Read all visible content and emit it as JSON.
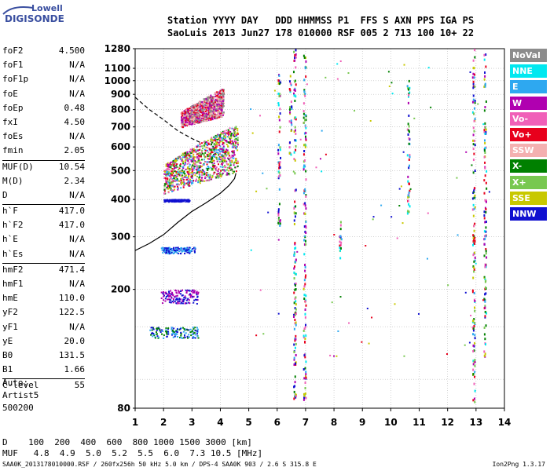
{
  "logo": {
    "line1": "Lowell",
    "line2": "DIGISONDE"
  },
  "header": {
    "line1": "Station YYYY DAY   DDD HHMMSS P1  FFS S AXN PPS IGA PS",
    "line2": "SaoLuis 2013 Jun27 178 010000 RSF 005 2 713 100 10+ 22"
  },
  "params": [
    {
      "label": "foF2",
      "value": "4.500"
    },
    {
      "label": "foF1",
      "value": "N/A"
    },
    {
      "label": "foF1p",
      "value": "N/A"
    },
    {
      "label": "foE",
      "value": "N/A"
    },
    {
      "label": "foEp",
      "value": "0.48"
    },
    {
      "label": "fxI",
      "value": "4.50"
    },
    {
      "label": "foEs",
      "value": "N/A"
    },
    {
      "label": "fmin",
      "value": "2.05"
    },
    {
      "label": "MUF(D)",
      "value": "10.54",
      "sep": true
    },
    {
      "label": "M(D)",
      "value": "2.34"
    },
    {
      "label": "D",
      "value": "N/A"
    },
    {
      "label": "h`F",
      "value": "417.0",
      "sep": true
    },
    {
      "label": "h`F2",
      "value": "417.0"
    },
    {
      "label": "h`E",
      "value": "N/A"
    },
    {
      "label": "h`Es",
      "value": "N/A"
    },
    {
      "label": "hmF2",
      "value": "471.4",
      "sep": true
    },
    {
      "label": "hmF1",
      "value": "N/A"
    },
    {
      "label": "hmE",
      "value": "110.0"
    },
    {
      "label": "yF2",
      "value": "122.5"
    },
    {
      "label": "yF1",
      "value": "N/A"
    },
    {
      "label": "yE",
      "value": "20.0"
    },
    {
      "label": "B0",
      "value": "131.5"
    },
    {
      "label": "B1",
      "value": "1.66"
    },
    {
      "label": "C-level",
      "value": "55",
      "sep": true
    }
  ],
  "auto": {
    "line1": "Auto:",
    "line2": "Artist5",
    "line3": "500200"
  },
  "dtable": {
    "line1": "D    100  200  400  600  800 1000 1500 3000 [km]",
    "line2": "MUF   4.8  4.9  5.0  5.2  5.5  6.0  7.3 10.5 [MHz]"
  },
  "footer": {
    "left": "SAA0K_2013178010000.RSF / 260fx256h 50 kHz 5.0 km / DPS-4 SAA0K 903 / 2.6 S 315.8 E",
    "right": "Ion2Png 1.3.17"
  },
  "legend": [
    {
      "label": "NoVal",
      "color": "#8c8c8c"
    },
    {
      "label": "NNE",
      "color": "#00e8f0"
    },
    {
      "label": "E",
      "color": "#2ea8f0"
    },
    {
      "label": "W",
      "color": "#b000b0"
    },
    {
      "label": "Vo-",
      "color": "#f060b8"
    },
    {
      "label": "Vo+",
      "color": "#e8001c"
    },
    {
      "label": "SSW",
      "color": "#f4b0b0"
    },
    {
      "label": "X-",
      "color": "#008000"
    },
    {
      "label": "X+",
      "color": "#78c850"
    },
    {
      "label": "SSE",
      "color": "#c8c800"
    },
    {
      "label": "NNW",
      "color": "#1010d0"
    }
  ],
  "chart_data": {
    "type": "scatter",
    "title": "",
    "xlabel": "",
    "ylabel": "",
    "xlim": [
      1,
      14
    ],
    "ylim": [
      80,
      1280
    ],
    "yscale": "log",
    "x_ticks": [
      1,
      2,
      3,
      4,
      5,
      6,
      7,
      8,
      9,
      10,
      11,
      12,
      13,
      14
    ],
    "y_ticks": [
      80,
      200,
      300,
      400,
      500,
      600,
      700,
      800,
      900,
      1000,
      1100,
      1280
    ],
    "y_ticks_minor": [
      100,
      150
    ],
    "grid": true,
    "legend_position": "right",
    "profile_curve": [
      [
        1.0,
        270
      ],
      [
        1.5,
        285
      ],
      [
        2.0,
        305
      ],
      [
        2.5,
        335
      ],
      [
        3.0,
        365
      ],
      [
        3.5,
        390
      ],
      [
        4.0,
        420
      ],
      [
        4.3,
        445
      ],
      [
        4.5,
        470
      ],
      [
        4.55,
        490
      ]
    ],
    "dashed_curve": [
      [
        1.0,
        880
      ],
      [
        1.5,
        800
      ],
      [
        2.0,
        740
      ],
      [
        2.5,
        680
      ],
      [
        3.0,
        640
      ],
      [
        3.3,
        620
      ]
    ],
    "trace_clusters": [
      {
        "name": "F-trace o",
        "x": [
          2.0,
          4.6
        ],
        "y": [
          420,
          720
        ],
        "colors": [
          "#b000b0",
          "#f060b8",
          "#e8001c",
          "#008000",
          "#78c850",
          "#c8c800",
          "#2ea8f0"
        ]
      },
      {
        "name": "F-trace x",
        "x": [
          2.6,
          4.1
        ],
        "y": [
          700,
          950
        ],
        "colors": [
          "#f4b0b0",
          "#b000b0",
          "#e8001c",
          "#8c8c8c"
        ]
      },
      {
        "name": "low-400",
        "x": [
          2.0,
          2.9
        ],
        "y": [
          395,
          402
        ],
        "colors": [
          "#1010d0"
        ]
      },
      {
        "name": "low-270",
        "x": [
          1.9,
          3.1
        ],
        "y": [
          265,
          278
        ],
        "colors": [
          "#1010d0",
          "#2ea8f0"
        ]
      },
      {
        "name": "low-190",
        "x": [
          1.9,
          3.2
        ],
        "y": [
          180,
          200
        ],
        "colors": [
          "#1010d0",
          "#b000b0"
        ]
      },
      {
        "name": "low-145",
        "x": [
          1.5,
          3.2
        ],
        "y": [
          138,
          150
        ],
        "colors": [
          "#1010d0",
          "#2ea8f0",
          "#008000"
        ]
      }
    ],
    "columns": [
      {
        "x": 6.05,
        "y": [
          330,
          1080
        ]
      },
      {
        "x": 6.45,
        "y": [
          560,
          1050
        ]
      },
      {
        "x": 6.6,
        "y": [
          84,
          1280
        ]
      },
      {
        "x": 6.95,
        "y": [
          84,
          1280
        ]
      },
      {
        "x": 8.2,
        "y": [
          240,
          350
        ]
      },
      {
        "x": 10.6,
        "y": [
          360,
          1040
        ]
      },
      {
        "x": 12.9,
        "y": [
          84,
          1280
        ]
      },
      {
        "x": 13.3,
        "y": [
          120,
          1250
        ]
      }
    ]
  }
}
